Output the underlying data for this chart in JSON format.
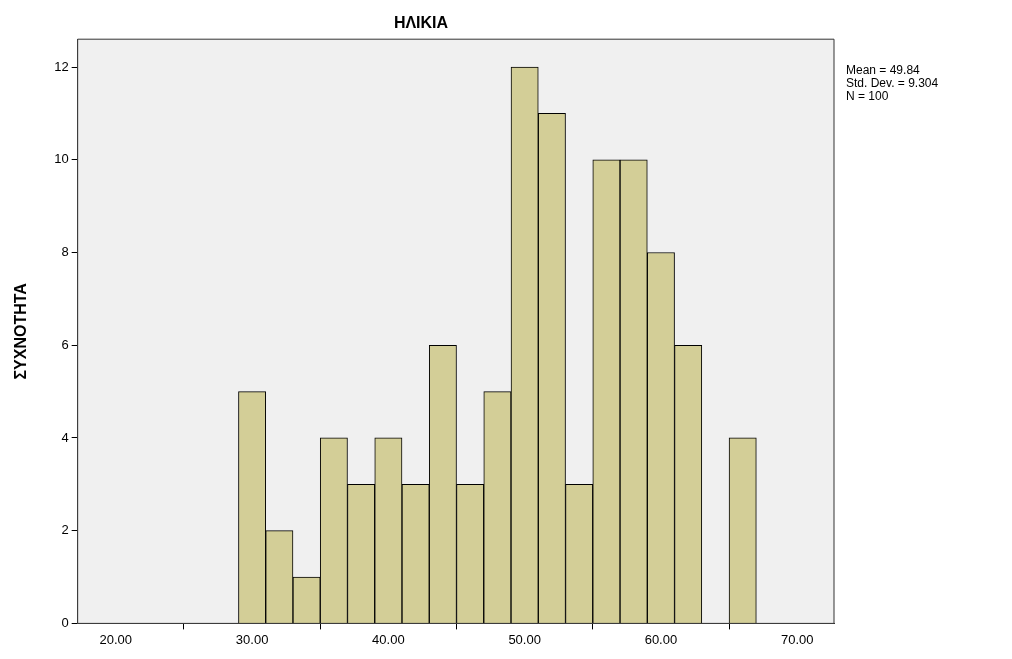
{
  "chart_data": {
    "type": "histogram",
    "title": "ΗΛΙΚΙΑ",
    "ylabel": "ΣΥΧΝΟΤΗΤΑ",
    "bins": [
      29,
      31,
      33,
      35,
      37,
      39,
      41,
      43,
      45,
      47,
      49,
      51,
      53,
      55,
      57,
      59,
      61,
      63,
      65,
      67
    ],
    "values": [
      5,
      2,
      1,
      4,
      3,
      4,
      3,
      6,
      3,
      5,
      12,
      11,
      3,
      10,
      10,
      8,
      6,
      0,
      4
    ],
    "color": "#d3ce97",
    "xlim": [
      17.2,
      72.7
    ],
    "xticks": [
      {
        "value": 20,
        "label": "20.00"
      },
      {
        "value": 30,
        "label": "30.00"
      },
      {
        "value": 40,
        "label": "40.00"
      },
      {
        "value": 50,
        "label": "50.00"
      },
      {
        "value": 60,
        "label": "60.00"
      },
      {
        "value": 70,
        "label": "70.00"
      }
    ],
    "ylim": [
      0,
      12.6
    ],
    "yticks": [
      0,
      2,
      4,
      6,
      8,
      10,
      12
    ],
    "grid": false,
    "legend": false,
    "annotations": [
      "Mean = 49.84",
      "Std. Dev. = 9.304",
      "N = 100"
    ]
  }
}
